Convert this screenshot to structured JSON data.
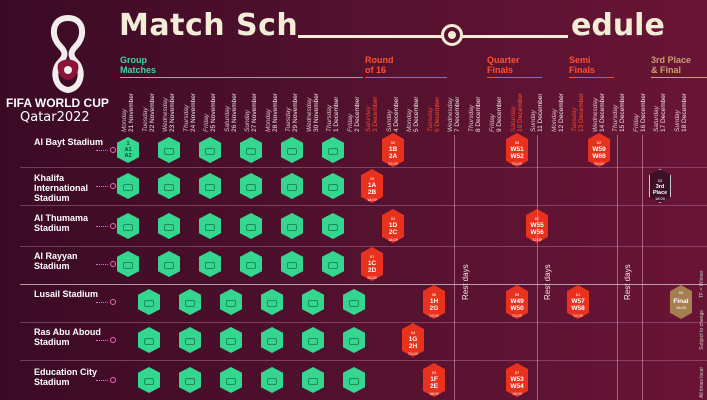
{
  "title": {
    "part1": "Match Sch",
    "part2": "edule"
  },
  "brand": {
    "line1": "FIFA WORLD CUP",
    "line2": "Qatar2022"
  },
  "colors": {
    "group": "#35d68f",
    "knockout": "#e8321e",
    "final": "#a57f50",
    "teal_line": "#3fd6a0"
  },
  "stages": [
    {
      "label1": "Group",
      "label2": "Matches"
    },
    {
      "label1": "Round",
      "label2": "of 16"
    },
    {
      "label1": "Quarter",
      "label2": "Finals"
    },
    {
      "label1": "Semi",
      "label2": "Finals"
    },
    {
      "label1": "3rd Place",
      "label2": "& Final"
    }
  ],
  "dates": [
    {
      "wd": "Monday",
      "d": "21 November"
    },
    {
      "wd": "Tuesday",
      "d": "22 November"
    },
    {
      "wd": "Wednesday",
      "d": "23 November"
    },
    {
      "wd": "Thursday",
      "d": "24 November"
    },
    {
      "wd": "Friday",
      "d": "25 November"
    },
    {
      "wd": "Saturday",
      "d": "26 November"
    },
    {
      "wd": "Sunday",
      "d": "27 November"
    },
    {
      "wd": "Monday",
      "d": "28 November"
    },
    {
      "wd": "Tuesday",
      "d": "29 November"
    },
    {
      "wd": "Wednesday",
      "d": "30 November"
    },
    {
      "wd": "Thursday",
      "d": "1 December"
    },
    {
      "wd": "Friday",
      "d": "2 December"
    },
    {
      "wd": "Saturday",
      "d": "3 December"
    },
    {
      "wd": "Sunday",
      "d": "4 December"
    },
    {
      "wd": "Monday",
      "d": "5 December"
    },
    {
      "wd": "Tuesday",
      "d": "6 December"
    },
    {
      "wd": "Wednesday",
      "d": "7 December"
    },
    {
      "wd": "Thursday",
      "d": "8 December"
    },
    {
      "wd": "Friday",
      "d": "9 December"
    },
    {
      "wd": "Saturday",
      "d": "10 December"
    },
    {
      "wd": "Sunday",
      "d": "11 December"
    },
    {
      "wd": "Monday",
      "d": "12 December"
    },
    {
      "wd": "Tuesday",
      "d": "13 December"
    },
    {
      "wd": "Wednesday",
      "d": "14 December"
    },
    {
      "wd": "Thursday",
      "d": "15 December"
    },
    {
      "wd": "Friday",
      "d": "16 December"
    },
    {
      "wd": "Saturday",
      "d": "17 December"
    },
    {
      "wd": "Sunday",
      "d": "18 December"
    }
  ],
  "stadiums": [
    {
      "name": "Al Bayt Stadium"
    },
    {
      "name": "Khalifa International Stadium"
    },
    {
      "name": "Al Thumama Stadium"
    },
    {
      "name": "Al Rayyan Stadium"
    },
    {
      "name": "Lusail Stadium"
    },
    {
      "name": "Ras Abu Aboud Stadium"
    },
    {
      "name": "Education City Stadium"
    }
  ],
  "first_match": {
    "num": "1",
    "a": "A1",
    "b": "A2"
  },
  "knockout": [
    {
      "num": "50",
      "l1": "1B",
      "l2": "2A",
      "time": "22:00"
    },
    {
      "num": "49",
      "l1": "1A",
      "l2": "2B",
      "time": "18:00"
    },
    {
      "num": "52",
      "l1": "1D",
      "l2": "2C",
      "time": "18:00"
    },
    {
      "num": "51",
      "l1": "1C",
      "l2": "2D",
      "time": "22:00"
    },
    {
      "num": "56",
      "l1": "1H",
      "l2": "2G",
      "time": "22:00"
    },
    {
      "num": "54",
      "l1": "1G",
      "l2": "2H",
      "time": "22:00"
    },
    {
      "num": "53",
      "l1": "1F",
      "l2": "2E",
      "time": "18:00"
    },
    {
      "num": "58",
      "l1": "W51",
      "l2": "W52",
      "time": "22:00"
    },
    {
      "num": "60",
      "l1": "W55",
      "l2": "W56",
      "time": "22:00"
    },
    {
      "num": "59",
      "l1": "W49",
      "l2": "W50",
      "time": "22:00"
    },
    {
      "num": "57",
      "l1": "W53",
      "l2": "W54",
      "time": "18:00"
    },
    {
      "num": "62",
      "l1": "W59",
      "l2": "W60",
      "time": "22:00"
    },
    {
      "num": "61",
      "l1": "W57",
      "l2": "W58",
      "time": "22:00"
    }
  ],
  "third_place": {
    "num": "63",
    "label": "3rd Place",
    "time": "18:00"
  },
  "final": {
    "num": "64",
    "label": "Final",
    "time": "18:00"
  },
  "rest_days": "Rest days",
  "side_notes": {
    "a": "All times local",
    "b": "Subject to change",
    "c": "TF = Winner"
  }
}
